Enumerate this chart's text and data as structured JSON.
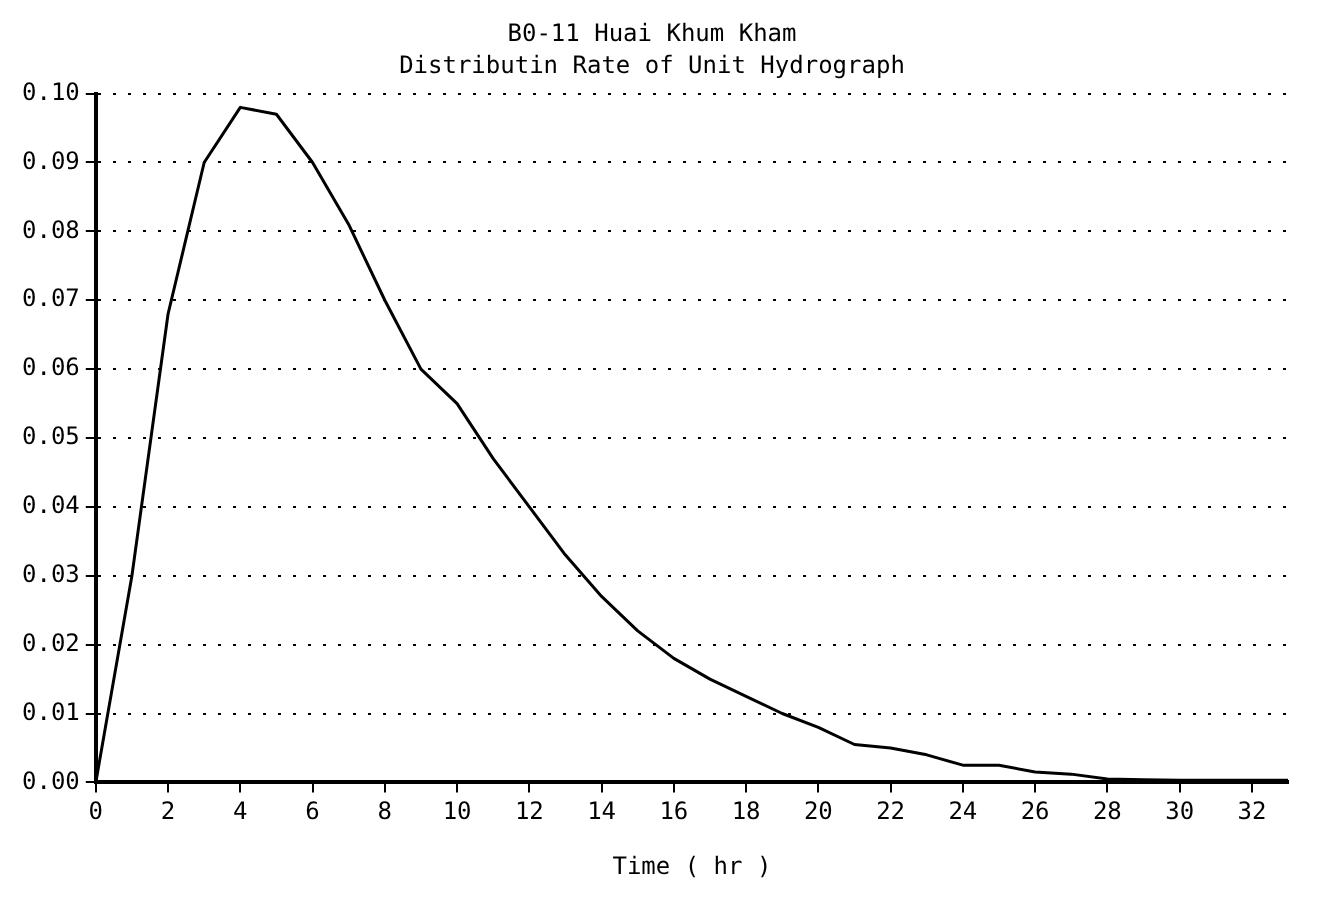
{
  "chart_data": {
    "type": "line",
    "title": "B0-11 Huai Khum Kham",
    "subtitle": "Distributin Rate of Unit Hydrograph",
    "xlabel": "Time ( hr )",
    "x": [
      0,
      1,
      2,
      3,
      4,
      5,
      6,
      7,
      8,
      9,
      10,
      11,
      12,
      13,
      14,
      15,
      16,
      17,
      18,
      19,
      20,
      21,
      22,
      23,
      24,
      25,
      26,
      27,
      28,
      29,
      30,
      31,
      32,
      33
    ],
    "series": [
      {
        "color": "#000000",
        "values": [
          0,
          0.03,
          0.068,
          0.09,
          0.098,
          0.097,
          0.09,
          0.081,
          0.07,
          0.06,
          0.055,
          0.047,
          0.04,
          0.033,
          0.027,
          0.022,
          0.018,
          0.015,
          0.0125,
          0.01,
          0.008,
          0.0055,
          0.005,
          0.004,
          0.0025,
          0.0025,
          0.0015,
          0.0012,
          0.0005,
          0.0004,
          0.0003,
          0.0003,
          0.0003,
          0.0003
        ]
      }
    ],
    "xlim": [
      0,
      33
    ],
    "xticks": [
      0,
      2,
      4,
      6,
      8,
      10,
      12,
      14,
      16,
      18,
      20,
      22,
      24,
      26,
      28,
      30,
      32
    ],
    "ylim": [
      0,
      0.1
    ],
    "yticks": [
      {
        "value": 0,
        "label": "0.00"
      },
      0.01,
      0.02,
      0.03,
      0.04,
      0.05,
      0.06,
      0.07,
      0.08,
      0.09,
      {
        "value": 0.1,
        "label": "0.10"
      }
    ],
    "grid": "y",
    "legend": false,
    "marker": "none",
    "line_style": "solid"
  }
}
